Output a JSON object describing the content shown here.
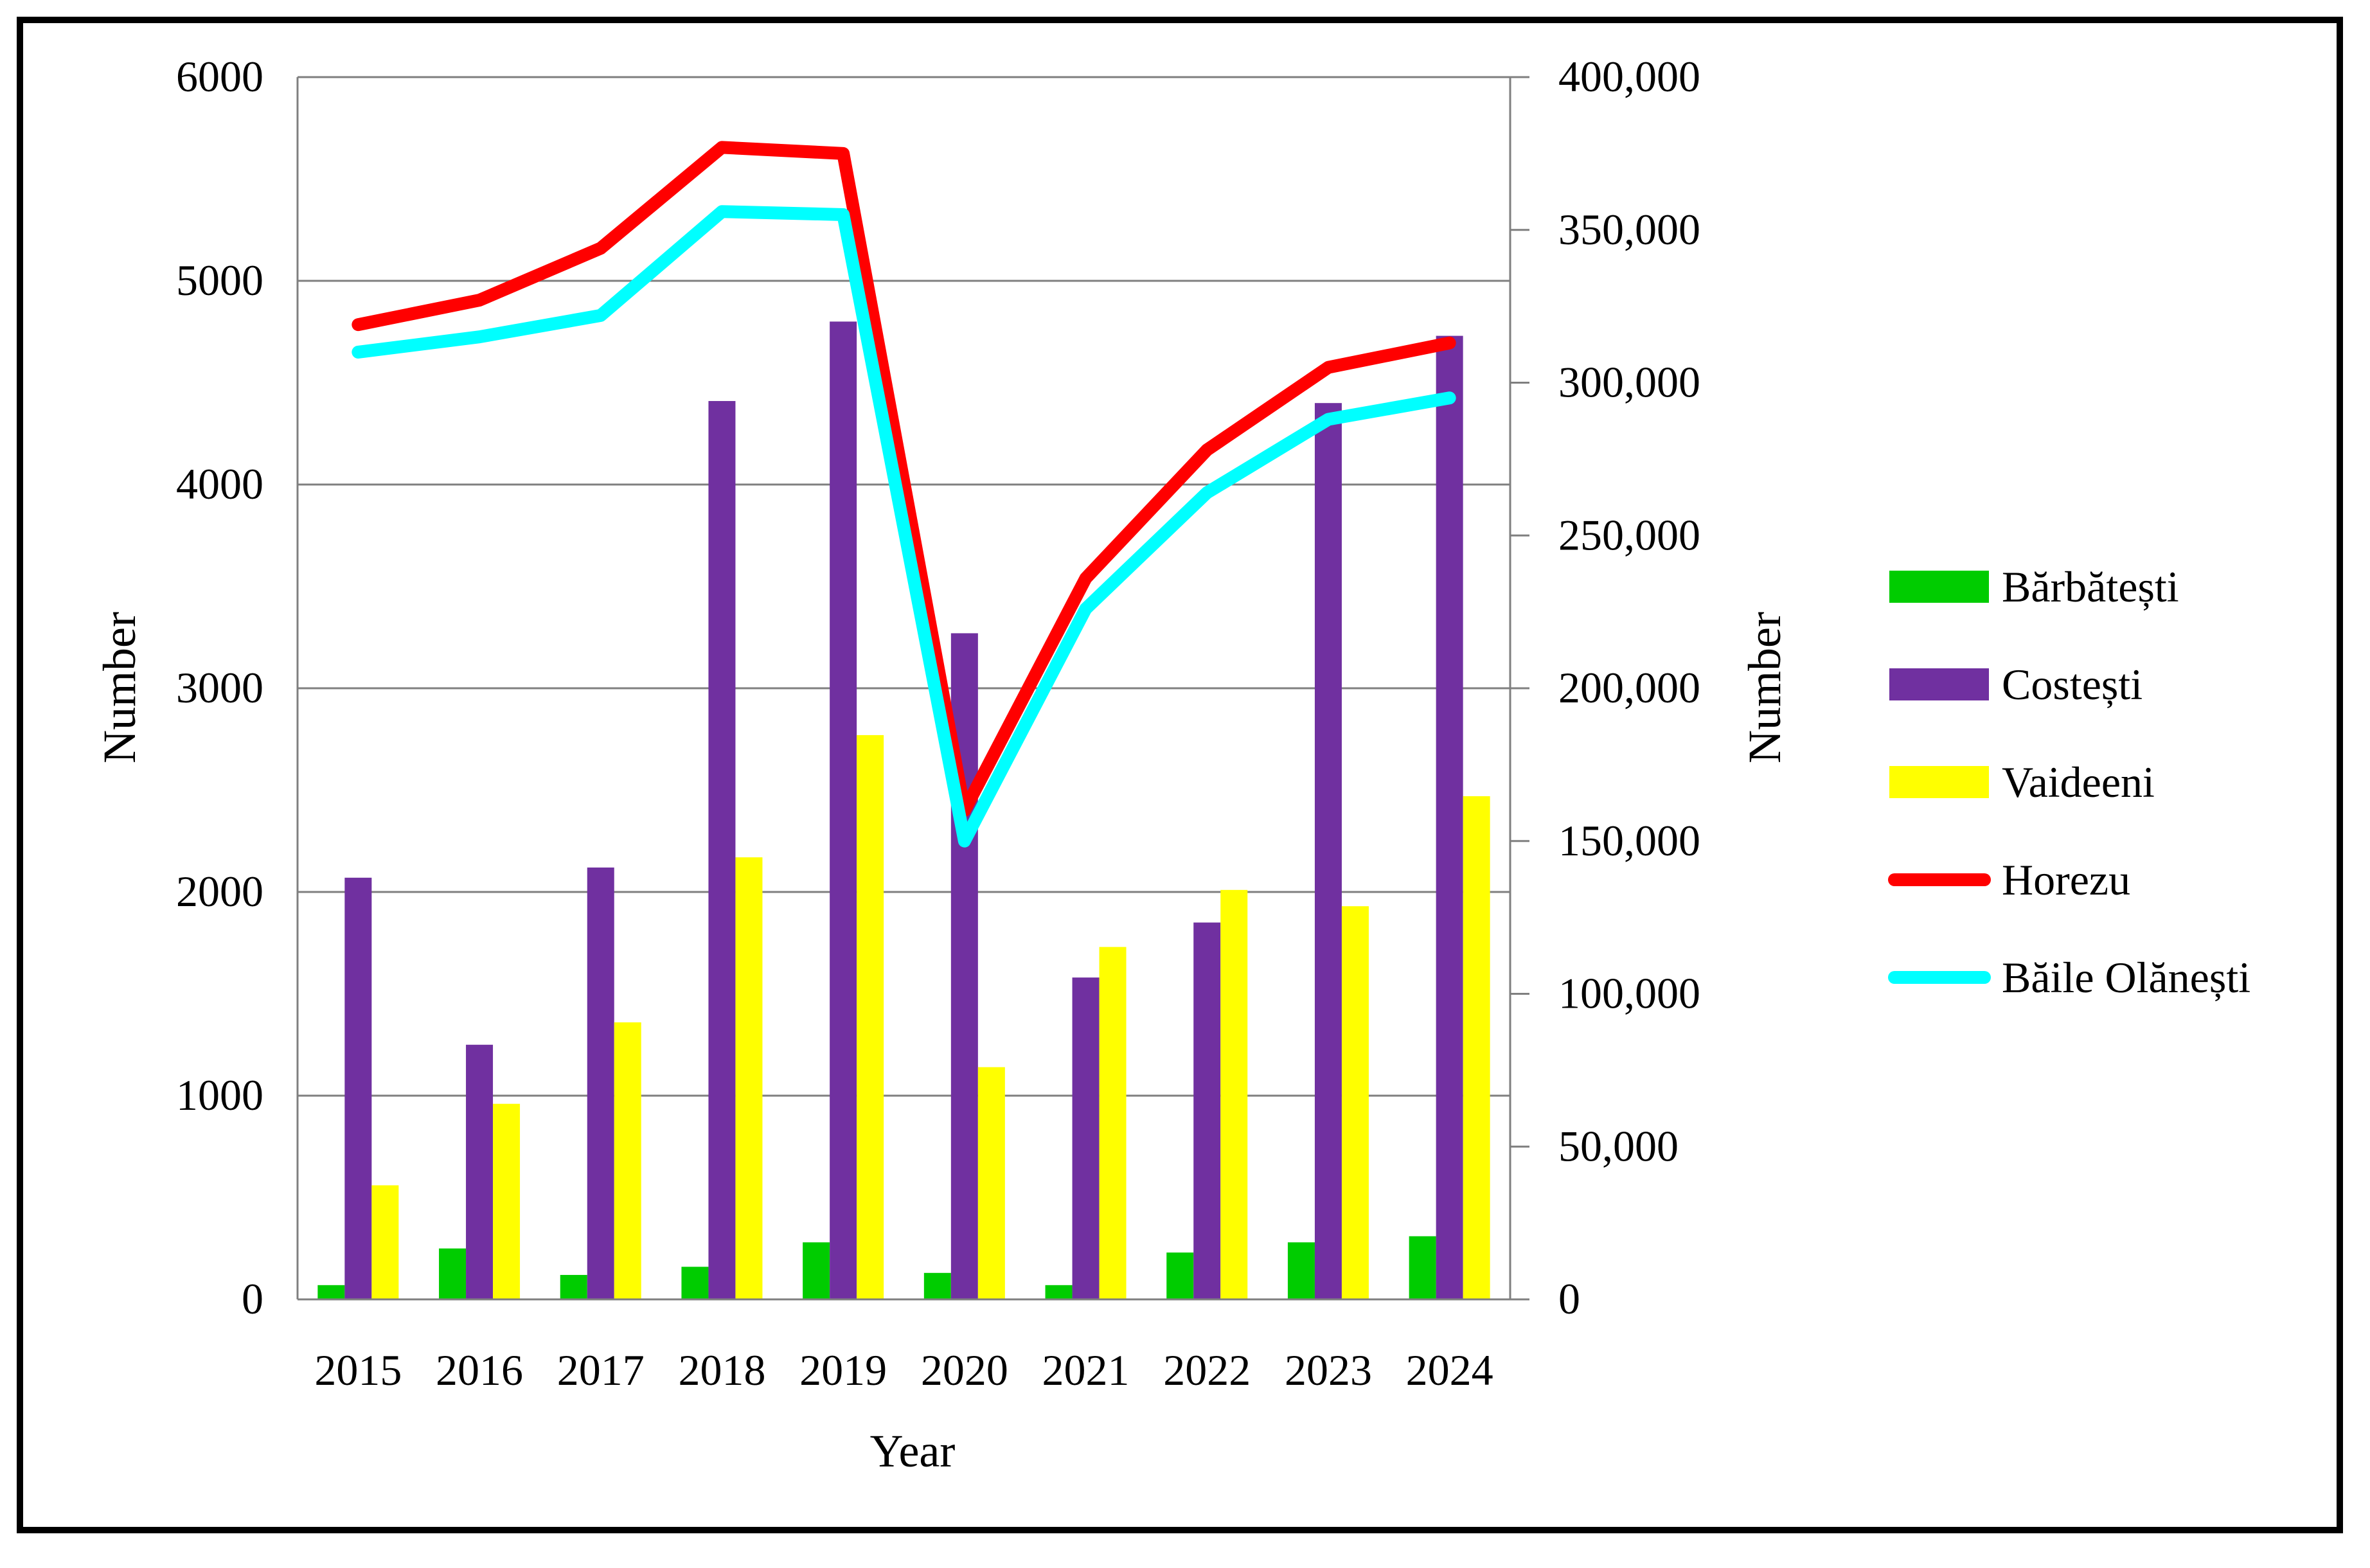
{
  "chart_data": {
    "type": "bar",
    "title": "",
    "xlabel": "Year",
    "ylabel": "Number",
    "ylabel_right": "Number",
    "categories": [
      "2015",
      "2016",
      "2017",
      "2018",
      "2019",
      "2020",
      "2021",
      "2022",
      "2023",
      "2024"
    ],
    "ylim": [
      0,
      6000
    ],
    "yticks": [
      "0",
      "1000",
      "2000",
      "3000",
      "4000",
      "5000",
      "6000"
    ],
    "ylim_right": [
      0,
      400000
    ],
    "yticks_right": [
      "0",
      "50,000",
      "100,000",
      "150,000",
      "200,000",
      "250,000",
      "300,000",
      "350,000",
      "400,000"
    ],
    "grid": true,
    "legend_position": "right",
    "series": [
      {
        "name": "Bărbătești",
        "kind": "bar",
        "axis": "left",
        "color": "#00cc00",
        "values": [
          70,
          250,
          120,
          160,
          280,
          130,
          70,
          230,
          280,
          310
        ]
      },
      {
        "name": "Costești",
        "kind": "bar",
        "axis": "left",
        "color": "#7030a0",
        "values": [
          2070,
          1250,
          2120,
          4410,
          4800,
          3270,
          1580,
          1850,
          4400,
          4730
        ]
      },
      {
        "name": "Vaideeni",
        "kind": "bar",
        "axis": "left",
        "color": "#ffff00",
        "values": [
          560,
          960,
          1360,
          2170,
          2770,
          1140,
          1730,
          2010,
          1930,
          2470
        ]
      },
      {
        "name": "Horezu",
        "kind": "line",
        "axis": "right",
        "color": "#ff0000",
        "values": [
          319000,
          327000,
          344000,
          377000,
          375000,
          160000,
          236000,
          278000,
          305000,
          313000
        ]
      },
      {
        "name": "Băile Olănești",
        "kind": "line",
        "axis": "right",
        "color": "#00ffff",
        "values": [
          310000,
          315000,
          322000,
          356000,
          355000,
          150000,
          226000,
          264000,
          288000,
          295000
        ]
      }
    ]
  }
}
